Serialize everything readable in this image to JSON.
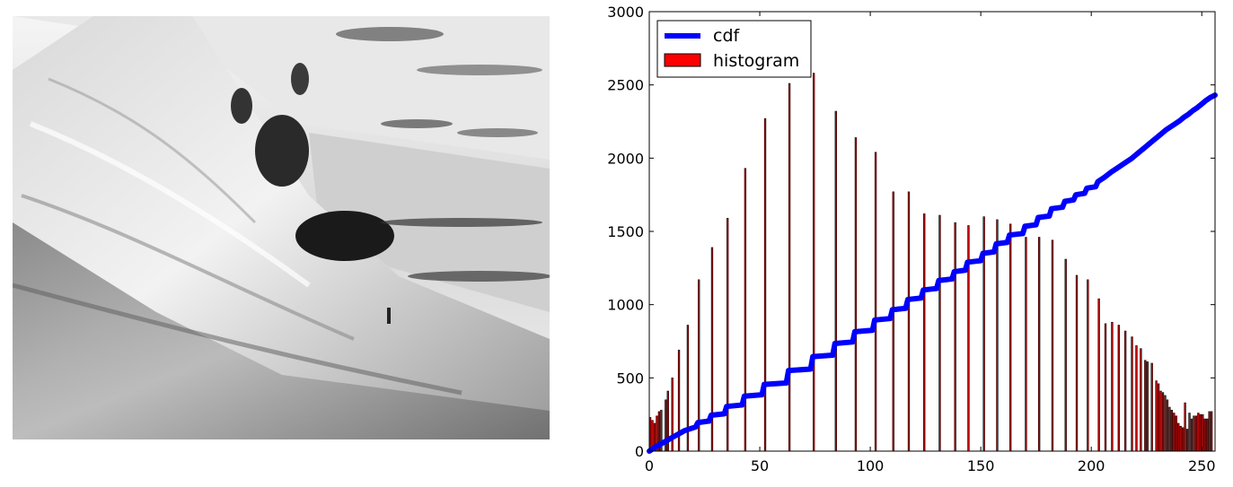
{
  "photo": {
    "subject": "grayscale-landscape-photo"
  },
  "chart_data": {
    "type": "bar",
    "title": "",
    "xlabel": "",
    "ylabel": "",
    "xlim": [
      0,
      256
    ],
    "ylim": [
      0,
      3000
    ],
    "x_ticks": [
      "0",
      "50",
      "100",
      "150",
      "200",
      "250"
    ],
    "y_ticks": [
      "0",
      "500",
      "1000",
      "1500",
      "2000",
      "2500",
      "3000"
    ],
    "legend_position": "top-left",
    "legend": [
      {
        "label": "cdf",
        "kind": "line",
        "color": "#0000ff"
      },
      {
        "label": "histogram",
        "kind": "patch",
        "color": "#ff0000"
      }
    ],
    "series": [
      {
        "name": "histogram",
        "color": "#cc0000",
        "bars": [
          {
            "x": 0,
            "y": 230
          },
          {
            "x": 1,
            "y": 210
          },
          {
            "x": 2,
            "y": 190
          },
          {
            "x": 3,
            "y": 240
          },
          {
            "x": 4,
            "y": 270
          },
          {
            "x": 5,
            "y": 280
          },
          {
            "x": 7,
            "y": 350
          },
          {
            "x": 8,
            "y": 410
          },
          {
            "x": 10,
            "y": 500
          },
          {
            "x": 13,
            "y": 690
          },
          {
            "x": 17,
            "y": 860
          },
          {
            "x": 22,
            "y": 1170
          },
          {
            "x": 28,
            "y": 1390
          },
          {
            "x": 35,
            "y": 1590
          },
          {
            "x": 43,
            "y": 1930
          },
          {
            "x": 52,
            "y": 2270
          },
          {
            "x": 63,
            "y": 2510
          },
          {
            "x": 74,
            "y": 2580
          },
          {
            "x": 84,
            "y": 2320
          },
          {
            "x": 93,
            "y": 2140
          },
          {
            "x": 102,
            "y": 2040
          },
          {
            "x": 110,
            "y": 1770
          },
          {
            "x": 117,
            "y": 1770
          },
          {
            "x": 124,
            "y": 1620
          },
          {
            "x": 131,
            "y": 1610
          },
          {
            "x": 138,
            "y": 1560
          },
          {
            "x": 144,
            "y": 1540
          },
          {
            "x": 151,
            "y": 1600
          },
          {
            "x": 157,
            "y": 1580
          },
          {
            "x": 163,
            "y": 1550
          },
          {
            "x": 170,
            "y": 1460
          },
          {
            "x": 176,
            "y": 1460
          },
          {
            "x": 182,
            "y": 1440
          },
          {
            "x": 188,
            "y": 1310
          },
          {
            "x": 193,
            "y": 1200
          },
          {
            "x": 198,
            "y": 1170
          },
          {
            "x": 203,
            "y": 1040
          },
          {
            "x": 206,
            "y": 870
          },
          {
            "x": 209,
            "y": 880
          },
          {
            "x": 212,
            "y": 860
          },
          {
            "x": 215,
            "y": 820
          },
          {
            "x": 218,
            "y": 780
          },
          {
            "x": 220,
            "y": 720
          },
          {
            "x": 222,
            "y": 700
          },
          {
            "x": 224,
            "y": 620
          },
          {
            "x": 225,
            "y": 610
          },
          {
            "x": 227,
            "y": 600
          },
          {
            "x": 229,
            "y": 480
          },
          {
            "x": 230,
            "y": 460
          },
          {
            "x": 231,
            "y": 410
          },
          {
            "x": 232,
            "y": 400
          },
          {
            "x": 233,
            "y": 380
          },
          {
            "x": 234,
            "y": 350
          },
          {
            "x": 235,
            "y": 300
          },
          {
            "x": 236,
            "y": 280
          },
          {
            "x": 237,
            "y": 260
          },
          {
            "x": 238,
            "y": 240
          },
          {
            "x": 239,
            "y": 190
          },
          {
            "x": 240,
            "y": 170
          },
          {
            "x": 241,
            "y": 160
          },
          {
            "x": 242,
            "y": 330
          },
          {
            "x": 243,
            "y": 150
          },
          {
            "x": 244,
            "y": 260
          },
          {
            "x": 245,
            "y": 220
          },
          {
            "x": 246,
            "y": 240
          },
          {
            "x": 247,
            "y": 240
          },
          {
            "x": 248,
            "y": 260
          },
          {
            "x": 249,
            "y": 250
          },
          {
            "x": 250,
            "y": 250
          },
          {
            "x": 251,
            "y": 220
          },
          {
            "x": 252,
            "y": 220
          },
          {
            "x": 253,
            "y": 270
          },
          {
            "x": 254,
            "y": 270
          }
        ]
      },
      {
        "name": "cdf",
        "color": "#0000ff",
        "points": [
          [
            0,
            0
          ],
          [
            3,
            30
          ],
          [
            6,
            55
          ],
          [
            10,
            90
          ],
          [
            13,
            115
          ],
          [
            16,
            140
          ],
          [
            17,
            145
          ],
          [
            21,
            165
          ],
          [
            22,
            195
          ],
          [
            27,
            205
          ],
          [
            28,
            245
          ],
          [
            34,
            255
          ],
          [
            35,
            305
          ],
          [
            42,
            315
          ],
          [
            43,
            375
          ],
          [
            51,
            385
          ],
          [
            52,
            455
          ],
          [
            62,
            465
          ],
          [
            63,
            550
          ],
          [
            73,
            560
          ],
          [
            74,
            645
          ],
          [
            83,
            655
          ],
          [
            84,
            735
          ],
          [
            92,
            745
          ],
          [
            93,
            815
          ],
          [
            101,
            825
          ],
          [
            102,
            895
          ],
          [
            109,
            905
          ],
          [
            110,
            965
          ],
          [
            116,
            975
          ],
          [
            117,
            1035
          ],
          [
            123,
            1045
          ],
          [
            124,
            1100
          ],
          [
            130,
            1110
          ],
          [
            131,
            1165
          ],
          [
            137,
            1175
          ],
          [
            138,
            1225
          ],
          [
            143,
            1235
          ],
          [
            144,
            1290
          ],
          [
            150,
            1300
          ],
          [
            151,
            1350
          ],
          [
            156,
            1360
          ],
          [
            157,
            1415
          ],
          [
            162,
            1425
          ],
          [
            163,
            1475
          ],
          [
            169,
            1485
          ],
          [
            170,
            1535
          ],
          [
            175,
            1545
          ],
          [
            176,
            1595
          ],
          [
            181,
            1605
          ],
          [
            182,
            1655
          ],
          [
            187,
            1665
          ],
          [
            188,
            1705
          ],
          [
            192,
            1715
          ],
          [
            193,
            1750
          ],
          [
            197,
            1760
          ],
          [
            198,
            1795
          ],
          [
            202,
            1805
          ],
          [
            203,
            1840
          ],
          [
            206,
            1870
          ],
          [
            209,
            1905
          ],
          [
            212,
            1935
          ],
          [
            215,
            1965
          ],
          [
            218,
            1995
          ],
          [
            220,
            2020
          ],
          [
            222,
            2045
          ],
          [
            224,
            2070
          ],
          [
            226,
            2095
          ],
          [
            228,
            2120
          ],
          [
            230,
            2145
          ],
          [
            232,
            2170
          ],
          [
            234,
            2195
          ],
          [
            236,
            2215
          ],
          [
            238,
            2235
          ],
          [
            240,
            2255
          ],
          [
            242,
            2280
          ],
          [
            244,
            2300
          ],
          [
            246,
            2325
          ],
          [
            248,
            2345
          ],
          [
            250,
            2370
          ],
          [
            252,
            2395
          ],
          [
            254,
            2415
          ],
          [
            256,
            2430
          ]
        ]
      }
    ]
  }
}
